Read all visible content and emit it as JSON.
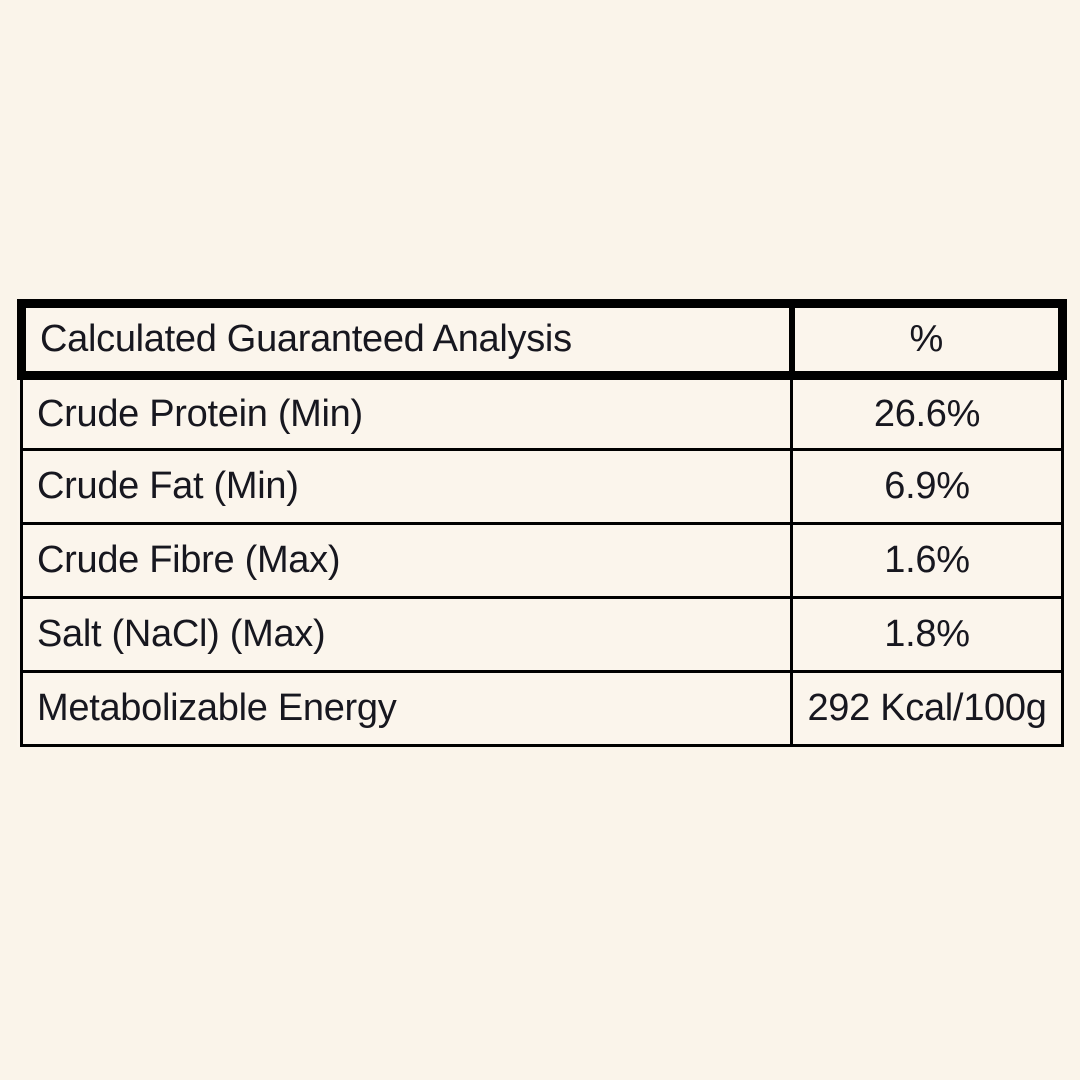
{
  "page": {
    "background_color": "#faf4ea"
  },
  "analysis_table": {
    "header": {
      "title": "Calculated Guaranteed Analysis",
      "unit": "%"
    },
    "rows": [
      {
        "label": "Crude Protein (Min)",
        "value": "26.6%"
      },
      {
        "label": "Crude Fat (Min)",
        "value": "6.9%"
      },
      {
        "label": "Crude Fibre (Max)",
        "value": "1.6%"
      },
      {
        "label": "Salt (NaCl) (Max)",
        "value": "1.8%"
      },
      {
        "label": "Metabolizable Energy",
        "value": "292 Kcal/100g"
      }
    ],
    "colors": {
      "page_background": "#faf4ea",
      "cell_background": "#fbf5ec",
      "border": "#000000",
      "text": "#17171f"
    }
  }
}
